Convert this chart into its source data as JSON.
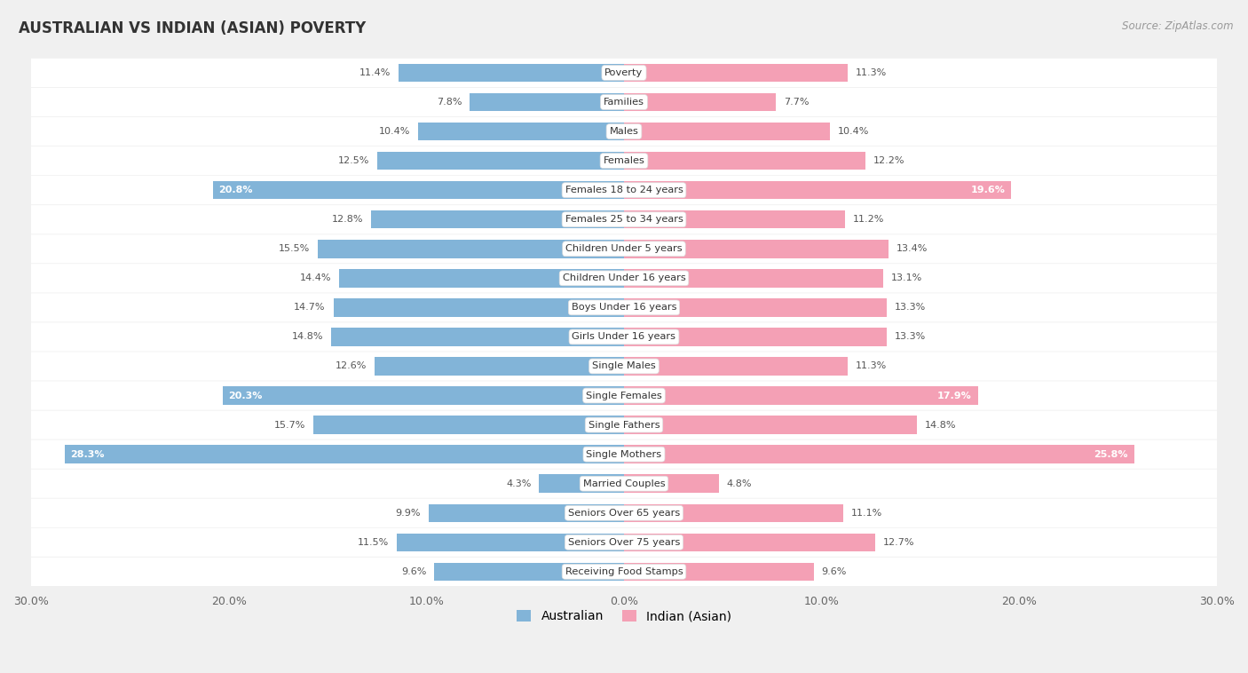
{
  "title": "Australian vs Indian (Asian) Poverty",
  "source": "Source: ZipAtlas.com",
  "categories": [
    "Poverty",
    "Families",
    "Males",
    "Females",
    "Females 18 to 24 years",
    "Females 25 to 34 years",
    "Children Under 5 years",
    "Children Under 16 years",
    "Boys Under 16 years",
    "Girls Under 16 years",
    "Single Males",
    "Single Females",
    "Single Fathers",
    "Single Mothers",
    "Married Couples",
    "Seniors Over 65 years",
    "Seniors Over 75 years",
    "Receiving Food Stamps"
  ],
  "australian_values": [
    11.4,
    7.8,
    10.4,
    12.5,
    20.8,
    12.8,
    15.5,
    14.4,
    14.7,
    14.8,
    12.6,
    20.3,
    15.7,
    28.3,
    4.3,
    9.9,
    11.5,
    9.6
  ],
  "indian_values": [
    11.3,
    7.7,
    10.4,
    12.2,
    19.6,
    11.2,
    13.4,
    13.1,
    13.3,
    13.3,
    11.3,
    17.9,
    14.8,
    25.8,
    4.8,
    11.1,
    12.7,
    9.6
  ],
  "australian_color": "#82b4d8",
  "indian_color": "#f4a0b5",
  "background_color": "#f0f0f0",
  "row_bg_odd": "#e8e8e8",
  "row_bg_even": "#f5f5f5",
  "bar_bg": "#ffffff",
  "axis_limit": 30.0,
  "bar_height": 0.62,
  "legend_labels": [
    "Australian",
    "Indian (Asian)"
  ],
  "inside_label_threshold": 17.0
}
